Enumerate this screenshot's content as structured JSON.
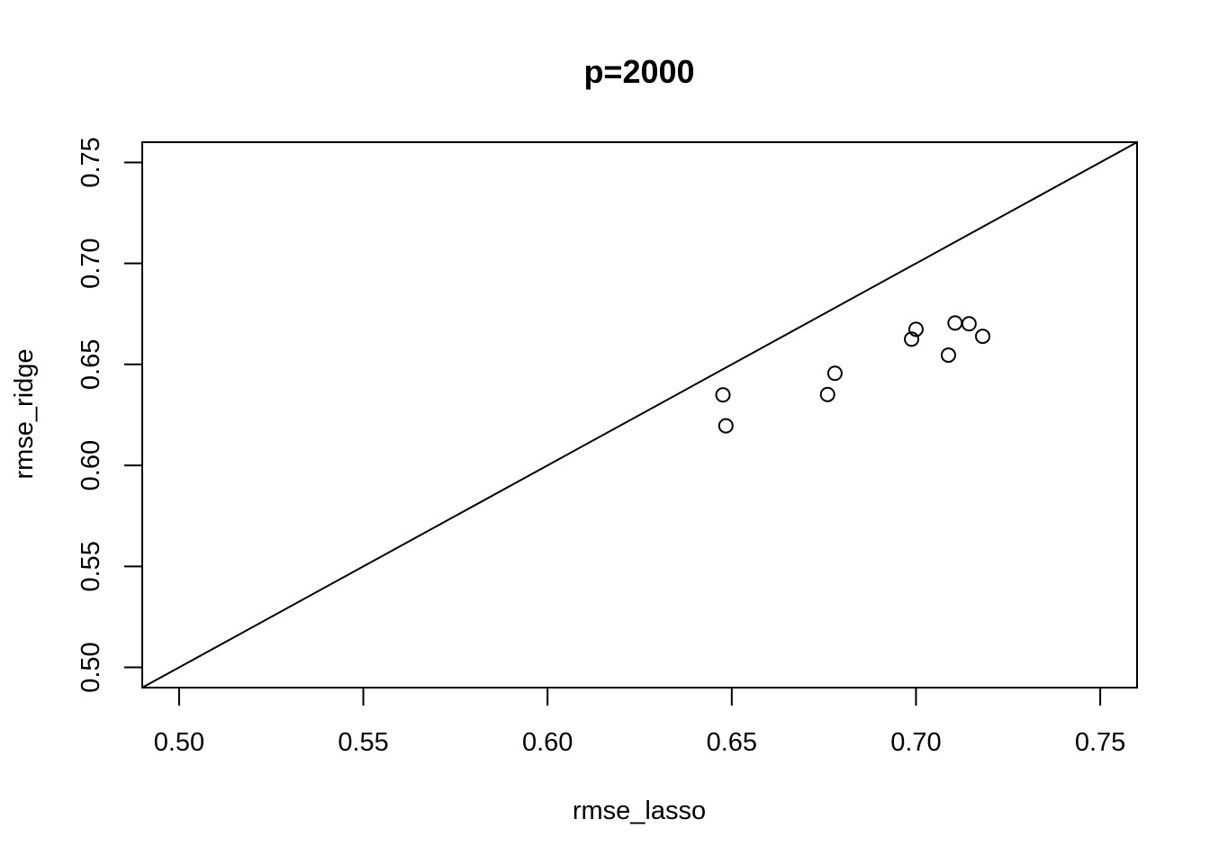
{
  "chart_data": {
    "type": "scatter",
    "title": "p=2000",
    "xlabel": "rmse_lasso",
    "ylabel": "rmse_ridge",
    "xlim": [
      0.49,
      0.76
    ],
    "ylim": [
      0.49,
      0.76
    ],
    "x_ticks": [
      0.5,
      0.55,
      0.6,
      0.65,
      0.7,
      0.75
    ],
    "x_tick_labels": [
      "0.50",
      "0.55",
      "0.60",
      "0.65",
      "0.70",
      "0.75"
    ],
    "y_ticks": [
      0.5,
      0.55,
      0.6,
      0.65,
      0.7,
      0.75
    ],
    "y_tick_labels": [
      "0.50",
      "0.55",
      "0.60",
      "0.65",
      "0.70",
      "0.75"
    ],
    "reference_line": {
      "intercept": 0,
      "slope": 1
    },
    "grid": false,
    "legend": "none",
    "series": [
      {
        "marker": "open-circle",
        "points": [
          {
            "x": 0.6476,
            "y": 0.6349
          },
          {
            "x": 0.6484,
            "y": 0.6196
          },
          {
            "x": 0.676,
            "y": 0.6351
          },
          {
            "x": 0.678,
            "y": 0.6456
          },
          {
            "x": 0.6988,
            "y": 0.6625
          },
          {
            "x": 0.7,
            "y": 0.6674
          },
          {
            "x": 0.7088,
            "y": 0.6546
          },
          {
            "x": 0.7106,
            "y": 0.6705
          },
          {
            "x": 0.7144,
            "y": 0.6701
          },
          {
            "x": 0.7181,
            "y": 0.6639
          }
        ]
      }
    ]
  }
}
